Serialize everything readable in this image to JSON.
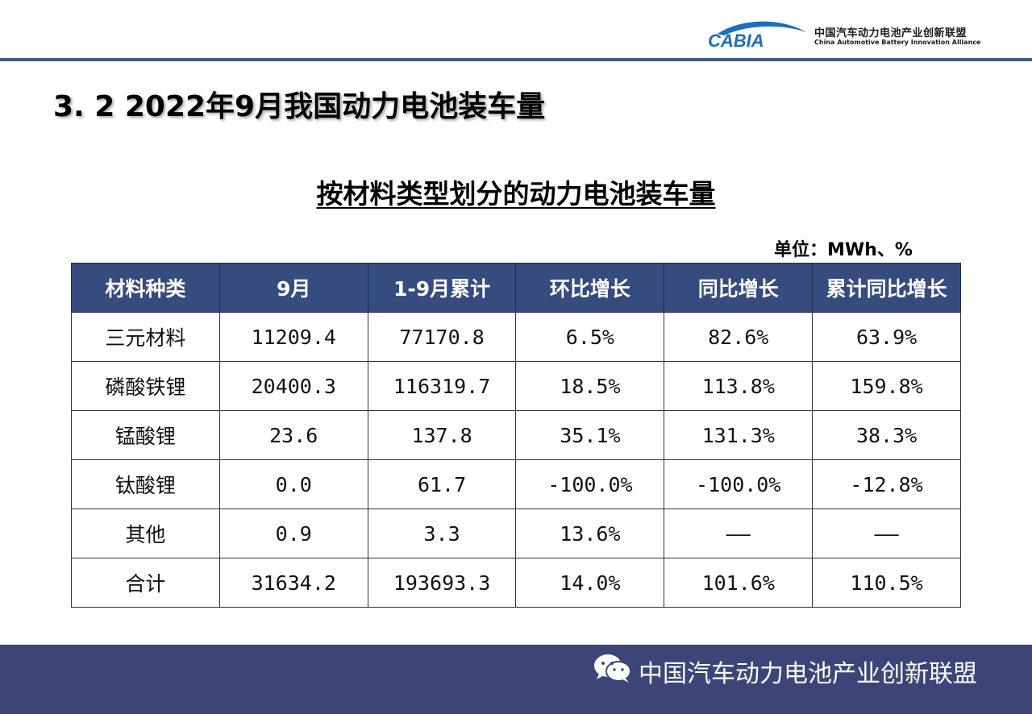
{
  "header": {
    "logo_text": "CABIA",
    "org_cn": "中国汽车动力电池产业创新联盟",
    "org_en": "China Automotive Battery Innovation Alliance"
  },
  "page": {
    "title": "3. 2  2022年9月我国动力电池装车量",
    "subtitle": "按材料类型划分的动力电池装车量",
    "unit": "单位：MWh、%"
  },
  "table": {
    "headers": [
      "材料种类",
      "9月",
      "1-9月累计",
      "环比增长",
      "同比增长",
      "累计同比增长"
    ],
    "rows": [
      [
        "三元材料",
        "11209.4",
        "77170.8",
        "6.5%",
        "82.6%",
        "63.9%"
      ],
      [
        "磷酸铁锂",
        "20400.3",
        "116319.7",
        "18.5%",
        "113.8%",
        "159.8%"
      ],
      [
        "锰酸锂",
        "23.6",
        "137.8",
        "35.1%",
        "131.3%",
        "38.3%"
      ],
      [
        "钛酸锂",
        "0.0",
        "61.7",
        "-100.0%",
        "-100.0%",
        "-12.8%"
      ],
      [
        "其他",
        "0.9",
        "3.3",
        "13.6%",
        "——",
        "——"
      ],
      [
        "合计",
        "31634.2",
        "193693.3",
        "14.0%",
        "101.6%",
        "110.5%"
      ]
    ]
  },
  "footer": {
    "icon": "wechat-icon",
    "text": "中国汽车动力电池产业创新联盟"
  },
  "colors": {
    "header_bg": "#364b7e",
    "footer_bg": "#3d4578",
    "top_line": "#3d5a8c",
    "logo_blue": "#1d6fb8"
  }
}
